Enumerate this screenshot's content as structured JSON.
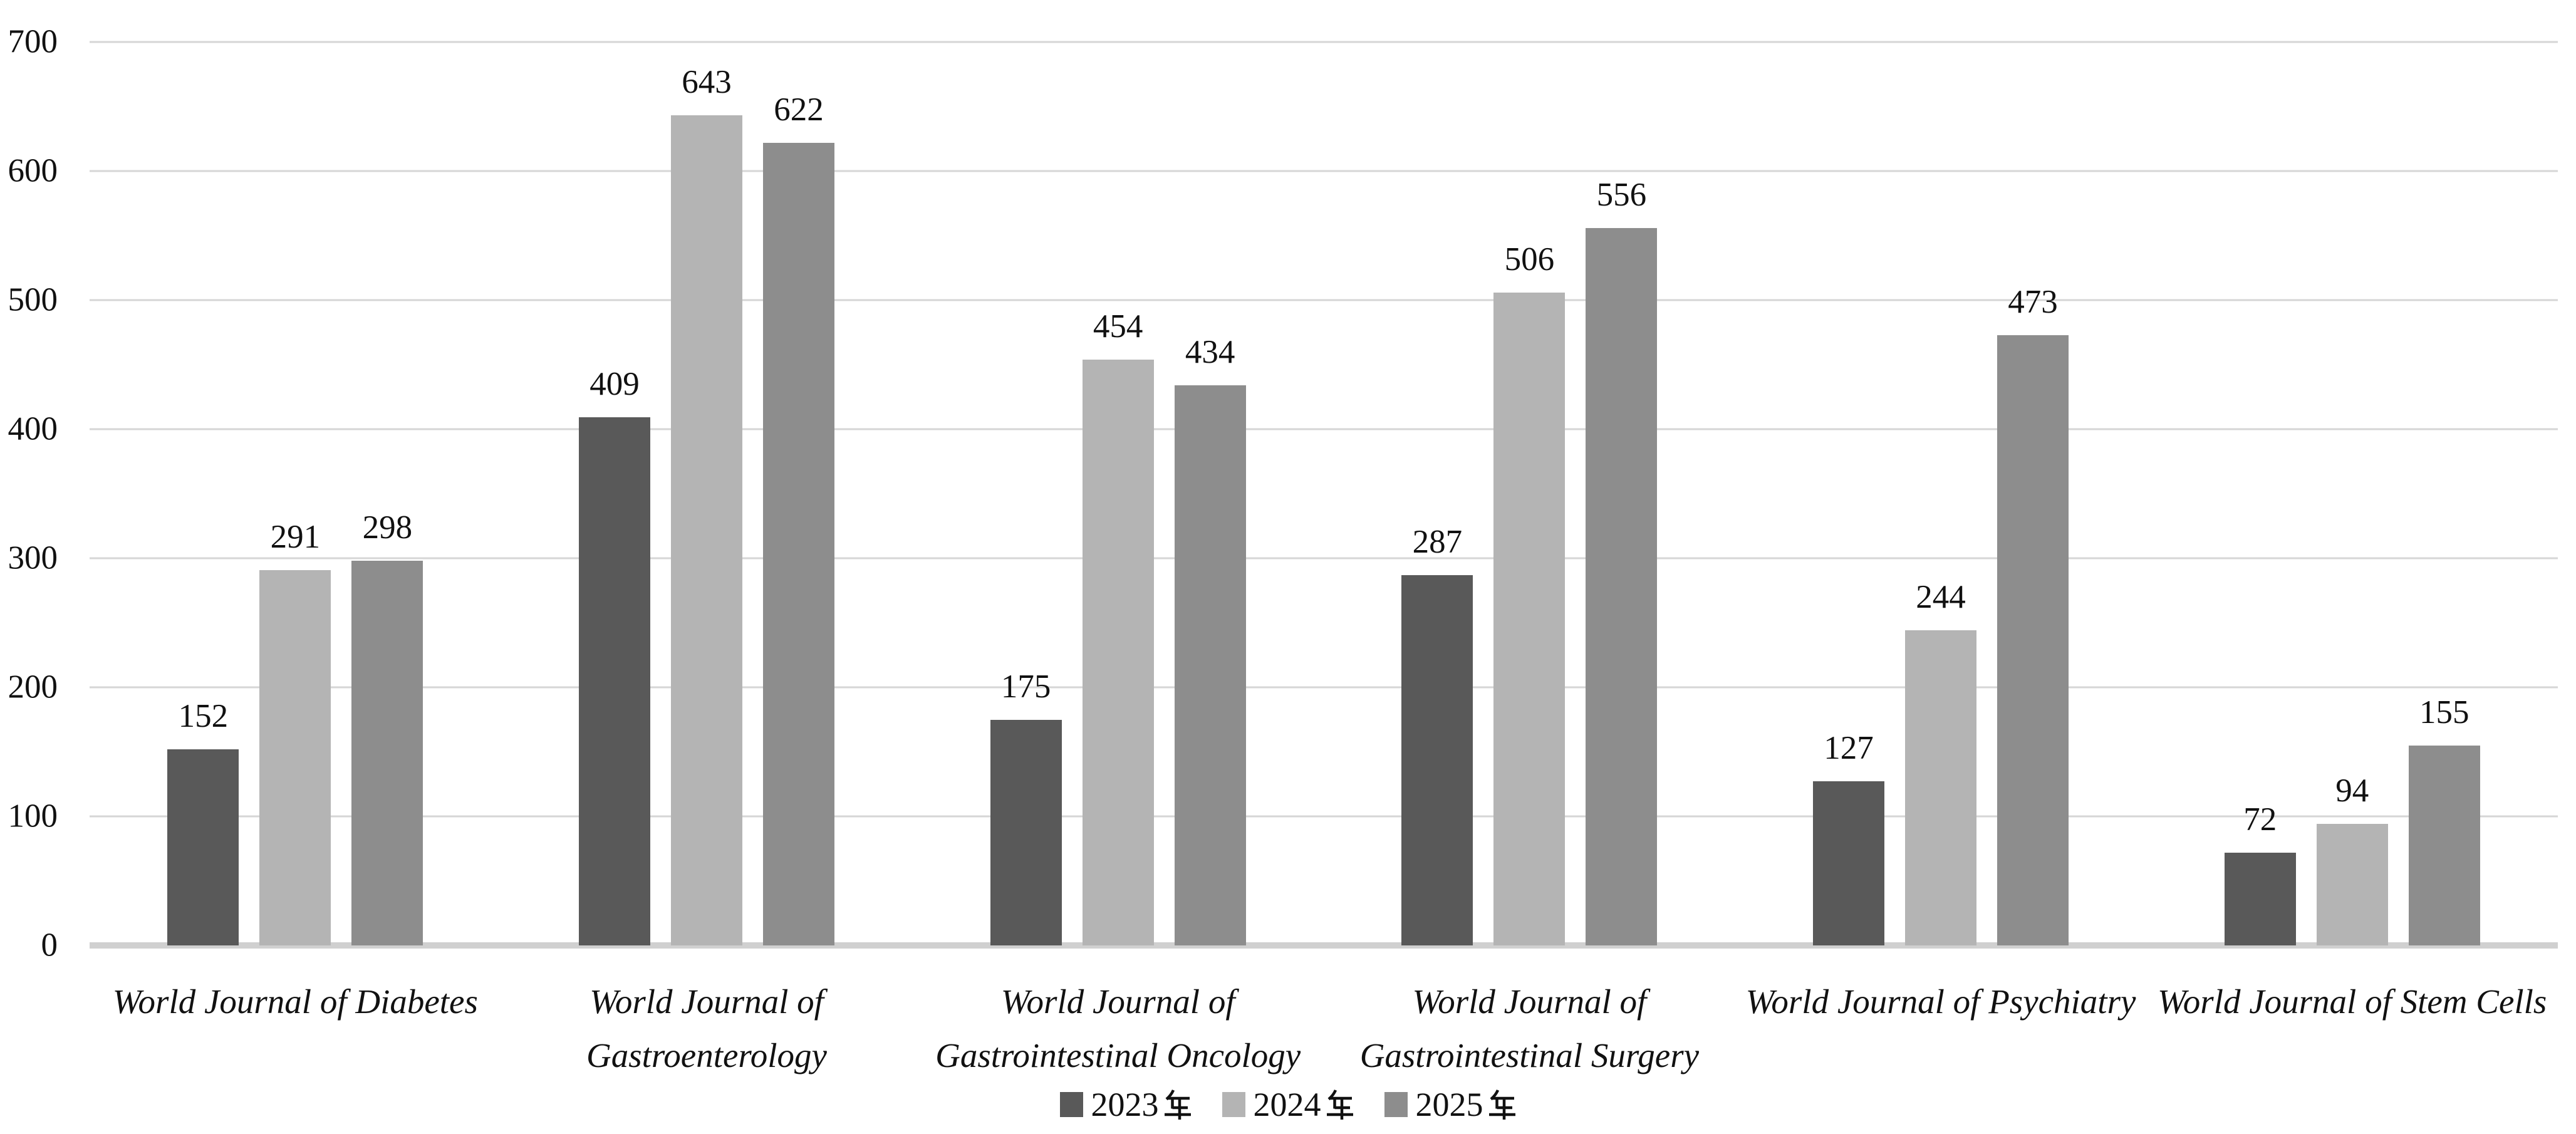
{
  "chart_data": {
    "type": "bar",
    "title": "",
    "xlabel": "",
    "ylabel": "",
    "ylim": [
      0,
      700
    ],
    "yticks": [
      0,
      100,
      200,
      300,
      400,
      500,
      600,
      700
    ],
    "grid": true,
    "legend_position": "bottom",
    "value_labels": true,
    "categories": [
      {
        "label": "World Journal of Diabetes",
        "lines": [
          "World Journal of Diabetes"
        ]
      },
      {
        "label": "World Journal of Gastroenterology",
        "lines": [
          "World Journal of",
          "Gastroenterology"
        ]
      },
      {
        "label": "World Journal of Gastrointestinal Oncology",
        "lines": [
          "World Journal of",
          "Gastrointestinal Oncology"
        ]
      },
      {
        "label": "World Journal of Gastrointestinal Surgery",
        "lines": [
          "World Journal of",
          "Gastrointestinal Surgery"
        ]
      },
      {
        "label": "World Journal of Psychiatry",
        "lines": [
          "World Journal of Psychiatry"
        ]
      },
      {
        "label": "World Journal of Stem Cells",
        "lines": [
          "World Journal of Stem Cells"
        ]
      }
    ],
    "series": [
      {
        "name": "2023年",
        "color": "#595959",
        "values": [
          152,
          409,
          175,
          287,
          127,
          72
        ]
      },
      {
        "name": "2024年",
        "color": "#b4b4b4",
        "values": [
          291,
          643,
          454,
          506,
          244,
          94
        ]
      },
      {
        "name": "2025年",
        "color": "#8d8d8d",
        "values": [
          298,
          622,
          434,
          556,
          473,
          155
        ]
      }
    ],
    "colors": {
      "gridline": "#d6d6d6",
      "axis_line": "#d0d0d0",
      "text": "#111111",
      "background": "#ffffff"
    }
  }
}
